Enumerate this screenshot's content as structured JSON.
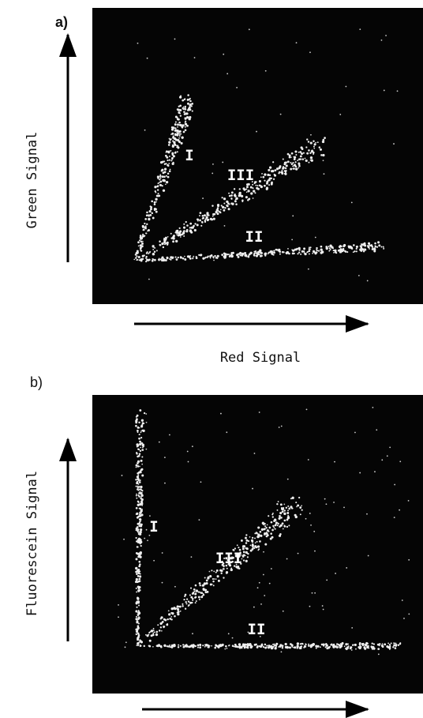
{
  "panels": [
    {
      "label": "a)",
      "y_axis": "Green Signal",
      "x_axis": "Red Signal",
      "populations": [
        "I",
        "III",
        "II"
      ]
    },
    {
      "label": "b)",
      "y_axis": "Fluorescein Signal",
      "populations": [
        "I",
        "III",
        "II"
      ]
    }
  ]
}
